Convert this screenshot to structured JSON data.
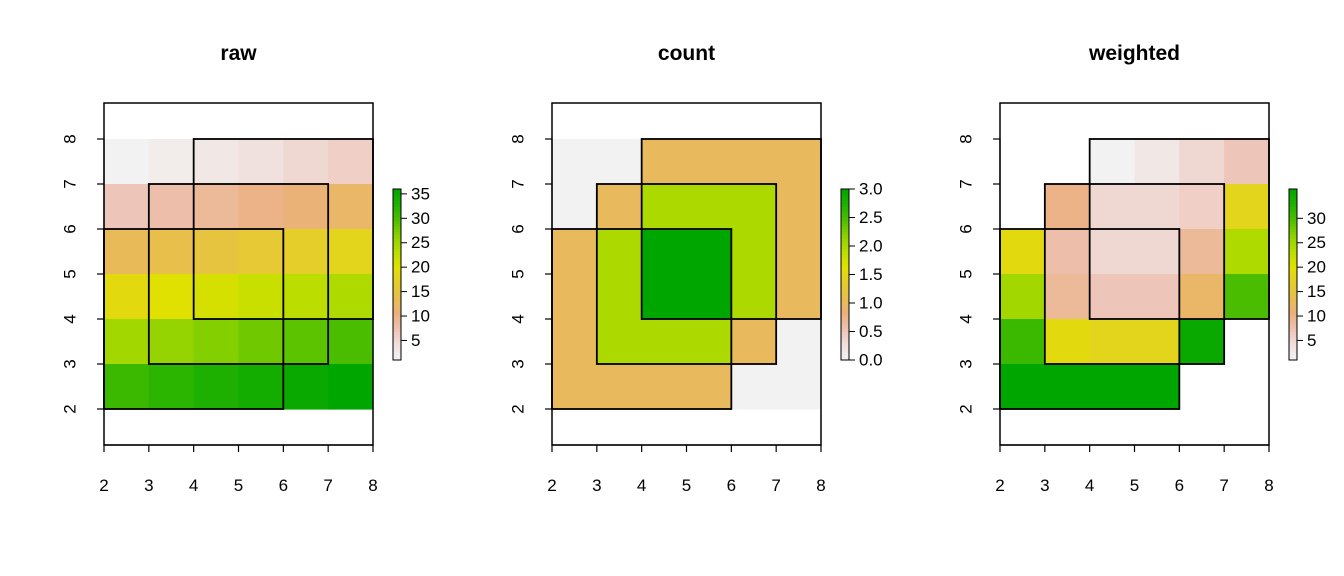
{
  "chart_data": [
    {
      "type": "heatmap",
      "title": "raw",
      "xlim": [
        2,
        8
      ],
      "ylim": [
        1.2,
        8.8
      ],
      "x_ticks": [
        2,
        3,
        4,
        5,
        6,
        7,
        8
      ],
      "y_ticks": [
        2,
        3,
        4,
        5,
        6,
        7,
        8
      ],
      "grid": false,
      "extent": {
        "xmin": 2,
        "xmax": 8,
        "ymin": 2,
        "ymax": 8
      },
      "cells": [
        [
          1,
          2,
          3,
          4,
          5,
          6
        ],
        [
          7,
          8,
          9,
          10,
          11,
          12
        ],
        [
          13,
          14,
          15,
          16,
          17,
          18
        ],
        [
          19,
          20,
          21,
          22,
          23,
          24
        ],
        [
          25,
          26,
          27,
          28,
          29,
          30
        ],
        [
          31,
          32,
          33,
          34,
          35,
          36
        ]
      ],
      "value_range": [
        1,
        36
      ],
      "legend": {
        "position": "right",
        "min": 1,
        "max": 36,
        "labels": [
          "5",
          "10",
          "15",
          "20",
          "25",
          "30",
          "35"
        ],
        "values": [
          5,
          10,
          15,
          20,
          25,
          30,
          35
        ]
      },
      "polygons": [
        {
          "xmin": 4,
          "xmax": 8,
          "ymin": 4,
          "ymax": 8
        },
        {
          "xmin": 3,
          "xmax": 7,
          "ymin": 3,
          "ymax": 7
        },
        {
          "xmin": 2,
          "xmax": 6,
          "ymin": 2,
          "ymax": 6
        }
      ]
    },
    {
      "type": "heatmap",
      "title": "count",
      "xlim": [
        2,
        8
      ],
      "ylim": [
        1.2,
        8.8
      ],
      "x_ticks": [
        2,
        3,
        4,
        5,
        6,
        7,
        8
      ],
      "y_ticks": [
        2,
        3,
        4,
        5,
        6,
        7,
        8
      ],
      "grid": false,
      "extent": {
        "xmin": 2,
        "xmax": 8,
        "ymin": 2,
        "ymax": 8
      },
      "cells": [
        [
          0,
          0,
          1,
          1,
          1,
          1
        ],
        [
          0,
          1,
          2,
          2,
          2,
          1
        ],
        [
          1,
          2,
          3,
          3,
          2,
          1
        ],
        [
          1,
          2,
          3,
          3,
          2,
          1
        ],
        [
          1,
          2,
          2,
          2,
          1,
          0
        ],
        [
          1,
          1,
          1,
          1,
          0,
          0
        ]
      ],
      "value_range": [
        0,
        3
      ],
      "legend": {
        "position": "right",
        "min": 0,
        "max": 3,
        "labels": [
          "0.0",
          "0.5",
          "1.0",
          "1.5",
          "2.0",
          "2.5",
          "3.0"
        ],
        "values": [
          0,
          0.5,
          1,
          1.5,
          2,
          2.5,
          3
        ]
      },
      "polygons": [
        {
          "xmin": 4,
          "xmax": 8,
          "ymin": 4,
          "ymax": 8
        },
        {
          "xmin": 3,
          "xmax": 7,
          "ymin": 3,
          "ymax": 7
        },
        {
          "xmin": 2,
          "xmax": 6,
          "ymin": 2,
          "ymax": 6
        }
      ]
    },
    {
      "type": "heatmap",
      "title": "weighted",
      "xlim": [
        2,
        8
      ],
      "ylim": [
        1.2,
        8.8
      ],
      "x_ticks": [
        2,
        3,
        4,
        5,
        6,
        7,
        8
      ],
      "y_ticks": [
        2,
        3,
        4,
        5,
        6,
        7,
        8
      ],
      "grid": false,
      "extent": {
        "xmin": 2,
        "xmax": 8,
        "ymin": 2,
        "ymax": 8
      },
      "cells": [
        [
          null,
          null,
          1,
          3,
          5,
          7
        ],
        [
          null,
          10,
          5,
          5,
          6,
          18
        ],
        [
          19,
          8,
          5,
          5,
          9,
          24
        ],
        [
          25,
          9,
          7,
          7,
          12,
          30
        ],
        [
          31,
          19,
          18,
          18,
          35,
          null
        ],
        [
          37,
          38,
          39,
          40,
          null,
          null
        ]
      ],
      "value_range": [
        1,
        36
      ],
      "legend": {
        "position": "right",
        "min": 1,
        "max": 36,
        "labels": [
          "5",
          "10",
          "15",
          "20",
          "25",
          "30"
        ],
        "values": [
          5,
          10,
          15,
          20,
          25,
          30
        ]
      },
      "polygons": [
        {
          "xmin": 4,
          "xmax": 8,
          "ymin": 4,
          "ymax": 8
        },
        {
          "xmin": 3,
          "xmax": 7,
          "ymin": 3,
          "ymax": 7
        },
        {
          "xmin": 2,
          "xmax": 6,
          "ymin": 2,
          "ymax": 6
        }
      ]
    }
  ],
  "colors": {
    "ramp": [
      "#f2f2f2",
      "#f1e0dd",
      "#eec2b4",
      "#ebb07f",
      "#e8be4d",
      "#e5cd2a",
      "#e0e100",
      "#b9dd00",
      "#8fd200",
      "#4fbf00",
      "#1fb100",
      "#00a600"
    ],
    "frame": "#000000"
  }
}
